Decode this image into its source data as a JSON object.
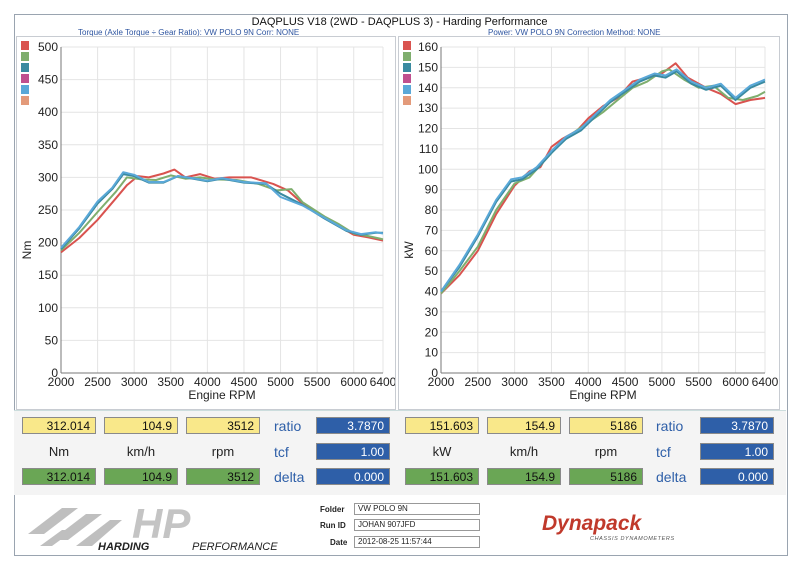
{
  "header": {
    "title": "DAQPLUS V18 (2WD - DAQPLUS 3) - Harding Performance",
    "left_subhead": "Torque (Axle Torque ÷ Gear Ratio): VW POLO 9N     Corr: NONE",
    "right_subhead": "Power: VW POLO 9N     Correction Method: NONE"
  },
  "series_colors": [
    "#d9534f",
    "#7fae6e",
    "#3a8aa0",
    "#c0508e",
    "#5aa8d8",
    "#e39a7a"
  ],
  "chart_data": [
    {
      "type": "line",
      "xlabel": "Engine RPM",
      "ylabel": "Nm",
      "xlim": [
        2000,
        6400
      ],
      "ylim": [
        0,
        500
      ],
      "xticks": [
        2000,
        2500,
        3000,
        3500,
        4000,
        4500,
        5000,
        5500,
        6000,
        6400
      ],
      "yticks": [
        0,
        50,
        100,
        150,
        200,
        250,
        300,
        350,
        400,
        450,
        500
      ],
      "series": [
        {
          "color": "#d9534f",
          "points": [
            [
              2000,
              185
            ],
            [
              2250,
              207
            ],
            [
              2500,
              235
            ],
            [
              2750,
              268
            ],
            [
              2900,
              288
            ],
            [
              3050,
              302
            ],
            [
              3200,
              300
            ],
            [
              3400,
              306
            ],
            [
              3550,
              312
            ],
            [
              3700,
              300
            ],
            [
              3900,
              305
            ],
            [
              4100,
              298
            ],
            [
              4300,
              300
            ],
            [
              4600,
              300
            ],
            [
              4900,
              290
            ],
            [
              5100,
              280
            ],
            [
              5300,
              260
            ],
            [
              5600,
              238
            ],
            [
              5800,
              225
            ],
            [
              6000,
              212
            ],
            [
              6200,
              208
            ],
            [
              6400,
              203
            ]
          ]
        },
        {
          "color": "#7fae6e",
          "points": [
            [
              2000,
              188
            ],
            [
              2250,
              215
            ],
            [
              2500,
              247
            ],
            [
              2750,
              278
            ],
            [
              2900,
              300
            ],
            [
              3100,
              297
            ],
            [
              3300,
              296
            ],
            [
              3500,
              303
            ],
            [
              3700,
              298
            ],
            [
              3900,
              300
            ],
            [
              4100,
              297
            ],
            [
              4400,
              296
            ],
            [
              4700,
              290
            ],
            [
              4950,
              280
            ],
            [
              5150,
              282
            ],
            [
              5300,
              262
            ],
            [
              5600,
              240
            ],
            [
              5800,
              228
            ],
            [
              6000,
              214
            ],
            [
              6200,
              210
            ],
            [
              6400,
              205
            ]
          ]
        },
        {
          "color": "#3a8aa0",
          "points": [
            [
              2000,
              190
            ],
            [
              2250,
              222
            ],
            [
              2500,
              260
            ],
            [
              2700,
              282
            ],
            [
              2850,
              305
            ],
            [
              3000,
              302
            ],
            [
              3200,
              292
            ],
            [
              3400,
              292
            ],
            [
              3600,
              302
            ],
            [
              3800,
              298
            ],
            [
              4000,
              294
            ],
            [
              4200,
              298
            ],
            [
              4500,
              292
            ],
            [
              4800,
              290
            ],
            [
              5000,
              275
            ],
            [
              5300,
              258
            ],
            [
              5600,
              237
            ],
            [
              5900,
              218
            ],
            [
              6100,
              212
            ],
            [
              6300,
              215
            ],
            [
              6400,
              215
            ]
          ]
        },
        {
          "color": "#5aa8d8",
          "points": [
            [
              2000,
              192
            ],
            [
              2250,
              224
            ],
            [
              2500,
              263
            ],
            [
              2700,
              284
            ],
            [
              2850,
              308
            ],
            [
              3000,
              304
            ],
            [
              3200,
              293
            ],
            [
              3400,
              293
            ],
            [
              3600,
              302
            ],
            [
              3800,
              299
            ],
            [
              4000,
              295
            ],
            [
              4200,
              299
            ],
            [
              4500,
              293
            ],
            [
              4800,
              291
            ],
            [
              5000,
              270
            ],
            [
              5300,
              257
            ],
            [
              5600,
              238
            ],
            [
              5900,
              219
            ],
            [
              6100,
              213
            ],
            [
              6300,
              216
            ],
            [
              6400,
              214
            ]
          ]
        }
      ]
    },
    {
      "type": "line",
      "xlabel": "Engine RPM",
      "ylabel": "kW",
      "xlim": [
        2000,
        6400
      ],
      "ylim": [
        0,
        160
      ],
      "xticks": [
        2000,
        2500,
        3000,
        3500,
        4000,
        4500,
        5000,
        5500,
        6000,
        6400
      ],
      "yticks": [
        0,
        10,
        20,
        30,
        40,
        50,
        60,
        70,
        80,
        90,
        100,
        110,
        120,
        130,
        140,
        150,
        160
      ],
      "series": [
        {
          "color": "#d9534f",
          "points": [
            [
              2000,
              39
            ],
            [
              2250,
              48
            ],
            [
              2500,
              60
            ],
            [
              2750,
              78
            ],
            [
              3000,
              92
            ],
            [
              3200,
              99
            ],
            [
              3350,
              101
            ],
            [
              3500,
              111
            ],
            [
              3650,
              115
            ],
            [
              3850,
              119
            ],
            [
              4000,
              125
            ],
            [
              4200,
              131
            ],
            [
              4400,
              135
            ],
            [
              4600,
              143
            ],
            [
              4800,
              145
            ],
            [
              5000,
              147
            ],
            [
              5186,
              152
            ],
            [
              5350,
              145
            ],
            [
              5600,
              140
            ],
            [
              5800,
              137
            ],
            [
              6000,
              132
            ],
            [
              6200,
              134
            ],
            [
              6400,
              135
            ]
          ]
        },
        {
          "color": "#7fae6e",
          "points": [
            [
              2000,
              39
            ],
            [
              2250,
              50
            ],
            [
              2500,
              62
            ],
            [
              2750,
              80
            ],
            [
              3000,
              93
            ],
            [
              3200,
              96
            ],
            [
              3400,
              104
            ],
            [
              3600,
              112
            ],
            [
              3800,
              118
            ],
            [
              4000,
              123
            ],
            [
              4200,
              128
            ],
            [
              4400,
              134
            ],
            [
              4600,
              140
            ],
            [
              4800,
              143
            ],
            [
              5000,
              148
            ],
            [
              5100,
              149
            ],
            [
              5300,
              144
            ],
            [
              5500,
              140
            ],
            [
              5700,
              141
            ],
            [
              5900,
              135
            ],
            [
              6100,
              134
            ],
            [
              6300,
              136
            ],
            [
              6400,
              138
            ]
          ]
        },
        {
          "color": "#3a8aa0",
          "points": [
            [
              2000,
              40
            ],
            [
              2250,
              52
            ],
            [
              2500,
              67
            ],
            [
              2750,
              84
            ],
            [
              2950,
              94
            ],
            [
              3100,
              95
            ],
            [
              3300,
              100
            ],
            [
              3500,
              108
            ],
            [
              3700,
              115
            ],
            [
              3900,
              119
            ],
            [
              4100,
              126
            ],
            [
              4300,
              133
            ],
            [
              4500,
              138
            ],
            [
              4700,
              143
            ],
            [
              4900,
              146
            ],
            [
              5050,
              145
            ],
            [
              5200,
              148
            ],
            [
              5400,
              142
            ],
            [
              5600,
              139
            ],
            [
              5800,
              141
            ],
            [
              6000,
              134
            ],
            [
              6200,
              140
            ],
            [
              6400,
              143
            ]
          ]
        },
        {
          "color": "#5aa8d8",
          "points": [
            [
              2000,
              40
            ],
            [
              2250,
              53
            ],
            [
              2500,
              68
            ],
            [
              2750,
              85
            ],
            [
              2950,
              95
            ],
            [
              3100,
              96
            ],
            [
              3300,
              101
            ],
            [
              3500,
              109
            ],
            [
              3700,
              116
            ],
            [
              3900,
              120
            ],
            [
              4100,
              127
            ],
            [
              4300,
              134
            ],
            [
              4500,
              139
            ],
            [
              4700,
              144
            ],
            [
              4900,
              147
            ],
            [
              5050,
              146
            ],
            [
              5200,
              149
            ],
            [
              5400,
              143
            ],
            [
              5600,
              140
            ],
            [
              5800,
              142
            ],
            [
              6000,
              135
            ],
            [
              6200,
              141
            ],
            [
              6400,
              144
            ]
          ]
        }
      ]
    }
  ],
  "readout": {
    "left": {
      "top": [
        "312.014",
        "104.9",
        "3512"
      ],
      "units": [
        "Nm",
        "km/h",
        "rpm"
      ],
      "bottom": [
        "312.014",
        "104.9",
        "3512"
      ],
      "ratio_label": "ratio",
      "ratio_value": "3.7870",
      "tcf_label": "tcf",
      "tcf_value": "1.00",
      "delta_label": "delta",
      "delta_value": "0.000"
    },
    "right": {
      "top": [
        "151.603",
        "154.9",
        "5186"
      ],
      "units": [
        "kW",
        "km/h",
        "rpm"
      ],
      "bottom": [
        "151.603",
        "154.9",
        "5186"
      ],
      "ratio_label": "ratio",
      "ratio_value": "3.7870",
      "tcf_label": "tcf",
      "tcf_value": "1.00",
      "delta_label": "delta",
      "delta_value": "0.000"
    }
  },
  "footer": {
    "logo_text": "HP",
    "logo_sub_a": "HARDING",
    "logo_sub_b": "PERFORMANCE",
    "folder_label": "Folder",
    "folder_value": "VW POLO 9N",
    "runid_label": "Run ID",
    "runid_value": "JOHAN 907JFD",
    "date_label": "Date",
    "date_value": "2012-08-25 11:57:44",
    "brand": "Dynapack",
    "brand_sub": "CHASSIS DYNAMOMETERS"
  }
}
